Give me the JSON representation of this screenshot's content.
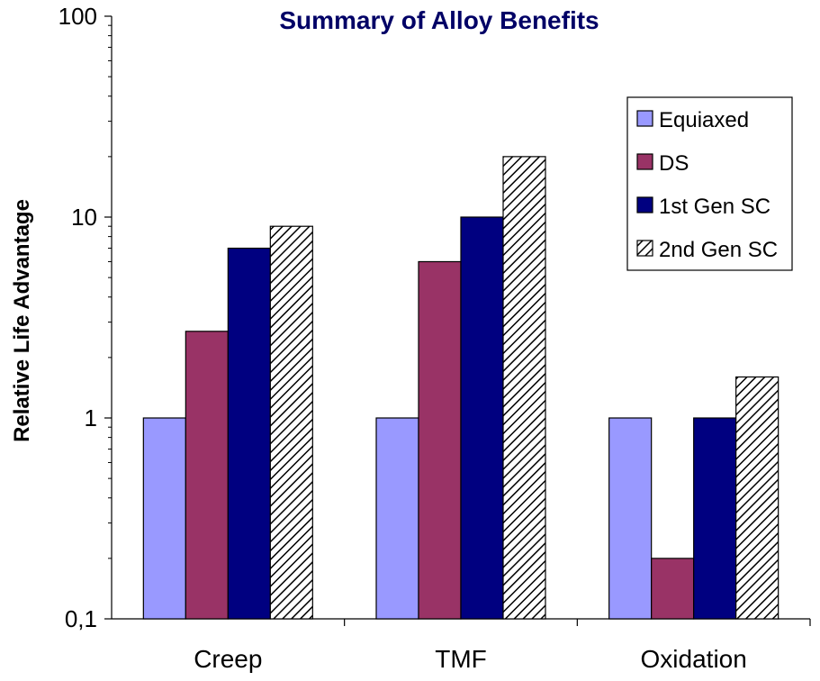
{
  "chart_data": {
    "type": "bar",
    "title": "Summary of Alloy Benefits",
    "xlabel": "",
    "ylabel": "Relative Life Advantage",
    "yscale": "log",
    "ylim": [
      0.1,
      100
    ],
    "yticks": [
      {
        "value": 0.1,
        "label": "0,1"
      },
      {
        "value": 1,
        "label": "1"
      },
      {
        "value": 10,
        "label": "10"
      },
      {
        "value": 100,
        "label": "100"
      }
    ],
    "categories": [
      "Creep",
      "TMF",
      "Oxidation"
    ],
    "series": [
      {
        "name": "Equiaxed",
        "values": [
          1,
          1,
          1
        ],
        "color": "#9999FF",
        "pattern": "solid"
      },
      {
        "name": "DS",
        "values": [
          2.7,
          6,
          0.2
        ],
        "color": "#993366",
        "pattern": "solid"
      },
      {
        "name": "1st Gen SC",
        "values": [
          7,
          10,
          1
        ],
        "color": "#000080",
        "pattern": "solid"
      },
      {
        "name": "2nd Gen SC",
        "values": [
          9,
          20,
          1.6
        ],
        "color": "#000000",
        "pattern": "diagonal-hatch"
      }
    ],
    "legend_position": "top-right",
    "grid": false,
    "title_color": "#000066"
  }
}
